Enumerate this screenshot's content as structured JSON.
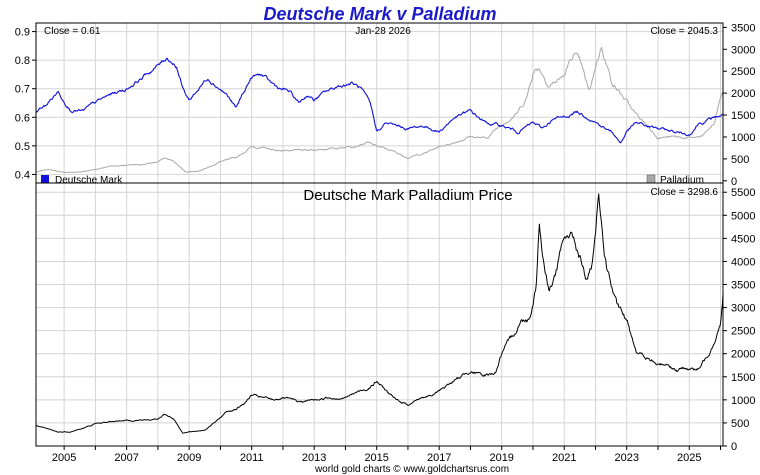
{
  "chart_data": {
    "type": "line",
    "title": "Deutsche Mark v Palladium",
    "footer": "world gold charts © www.goldchartsrus.com",
    "colors": {
      "title": "#1a1acc",
      "dm": "#1010dd",
      "palladium": "#a8a8a8",
      "price": "#000000",
      "grid": "#d4d4d4",
      "frame": "#000000"
    },
    "x_axis": {
      "range": [
        2004.1,
        2026.08
      ],
      "ticks": [
        2005,
        2007,
        2009,
        2011,
        2013,
        2015,
        2017,
        2019,
        2021,
        2023,
        2025
      ],
      "labels": [
        "2005",
        "2007",
        "2009",
        "2011",
        "2013",
        "2015",
        "2017",
        "2019",
        "2021",
        "2023",
        "2025"
      ]
    },
    "top_panel": {
      "close_left": "Close = 0.61",
      "date": "Jan-28  2026",
      "close_right": "Close = 2045.3",
      "left_axis": {
        "range": [
          0.37,
          0.93
        ],
        "ticks": [
          0.4,
          0.5,
          0.6,
          0.7,
          0.8,
          0.9
        ],
        "labels": [
          "0.4",
          "0.5",
          "0.6",
          "0.7",
          "0.8",
          "0.9"
        ]
      },
      "right_axis": {
        "range": [
          -50,
          3600
        ],
        "ticks": [
          0,
          500,
          1000,
          1500,
          2000,
          2500,
          3000,
          3500
        ],
        "labels": [
          "0",
          "500",
          "1000",
          "1500",
          "2000",
          "2500",
          "3000",
          "3500"
        ]
      },
      "legend": {
        "left": "Deutsche Mark",
        "right": "Palladium"
      },
      "series": [
        {
          "name": "Deutsche Mark",
          "axis": "left",
          "x": [
            2004.1,
            2004.4,
            2004.8,
            2005.2,
            2005.6,
            2006.0,
            2006.5,
            2007.0,
            2007.5,
            2008.0,
            2008.3,
            2008.6,
            2008.8,
            2009.0,
            2009.3,
            2009.6,
            2009.9,
            2010.2,
            2010.5,
            2010.8,
            2011.0,
            2011.3,
            2011.6,
            2011.9,
            2012.2,
            2012.5,
            2012.8,
            2013.0,
            2013.4,
            2013.8,
            2014.2,
            2014.5,
            2014.8,
            2015.0,
            2015.3,
            2015.6,
            2016.0,
            2016.5,
            2017.0,
            2017.5,
            2018.0,
            2018.5,
            2019.0,
            2019.5,
            2020.0,
            2020.3,
            2020.6,
            2021.0,
            2021.4,
            2021.8,
            2022.2,
            2022.6,
            2022.8,
            2023.0,
            2023.3,
            2023.6,
            2024.0,
            2024.5,
            2025.0,
            2025.3,
            2025.6,
            2026.08
          ],
          "y": [
            0.62,
            0.64,
            0.69,
            0.63,
            0.62,
            0.65,
            0.68,
            0.7,
            0.74,
            0.78,
            0.81,
            0.78,
            0.7,
            0.66,
            0.7,
            0.74,
            0.71,
            0.68,
            0.63,
            0.7,
            0.74,
            0.75,
            0.72,
            0.7,
            0.69,
            0.65,
            0.68,
            0.66,
            0.69,
            0.71,
            0.72,
            0.7,
            0.64,
            0.55,
            0.58,
            0.57,
            0.56,
            0.57,
            0.55,
            0.6,
            0.62,
            0.58,
            0.57,
            0.55,
            0.58,
            0.56,
            0.59,
            0.6,
            0.62,
            0.6,
            0.57,
            0.54,
            0.51,
            0.55,
            0.58,
            0.57,
            0.56,
            0.55,
            0.54,
            0.58,
            0.59,
            0.61
          ]
        },
        {
          "name": "Palladium",
          "axis": "right",
          "x": [
            2004.1,
            2004.5,
            2005.0,
            2005.5,
            2006.0,
            2006.5,
            2007.0,
            2007.5,
            2008.0,
            2008.2,
            2008.5,
            2008.9,
            2009.3,
            2009.7,
            2010.0,
            2010.5,
            2011.0,
            2011.3,
            2011.8,
            2012.2,
            2012.8,
            2013.2,
            2013.8,
            2014.3,
            2014.7,
            2015.0,
            2015.5,
            2016.0,
            2016.5,
            2017.0,
            2017.5,
            2018.0,
            2018.5,
            2019.0,
            2019.5,
            2019.8,
            2020.0,
            2020.2,
            2020.5,
            2020.8,
            2021.0,
            2021.3,
            2021.5,
            2021.8,
            2022.0,
            2022.2,
            2022.5,
            2022.8,
            2023.0,
            2023.3,
            2023.6,
            2024.0,
            2024.5,
            2025.0,
            2025.4,
            2025.8,
            2026.0,
            2026.08
          ],
          "y": [
            200,
            260,
            190,
            200,
            260,
            340,
            350,
            370,
            430,
            520,
            450,
            200,
            230,
            330,
            440,
            520,
            780,
            760,
            690,
            700,
            680,
            720,
            750,
            810,
            870,
            790,
            680,
            530,
            620,
            780,
            880,
            1020,
            960,
            1300,
            1550,
            1900,
            2500,
            2600,
            2200,
            2300,
            2400,
            2900,
            2700,
            2000,
            2600,
            3100,
            2300,
            2000,
            1800,
            1500,
            1300,
            1000,
            1000,
            970,
            1000,
            1300,
            1900,
            2045.3
          ]
        }
      ]
    },
    "bottom_panel": {
      "title": "Deutsche Mark Palladium Price",
      "close_right": "Close = 3298.6",
      "right_axis": {
        "range": [
          0,
          5700
        ],
        "ticks": [
          0,
          500,
          1000,
          1500,
          2000,
          2500,
          3000,
          3500,
          4000,
          4500,
          5000,
          5500
        ],
        "labels": [
          "0",
          "500",
          "1000",
          "1500",
          "2000",
          "2500",
          "3000",
          "3500",
          "4000",
          "4500",
          "5000",
          "5500"
        ]
      },
      "series": [
        {
          "name": "Deutsche Mark Palladium Price",
          "x": [
            2004.1,
            2004.4,
            2004.8,
            2005.2,
            2005.6,
            2006.0,
            2006.4,
            2006.8,
            2007.2,
            2007.6,
            2008.0,
            2008.2,
            2008.5,
            2008.8,
            2009.0,
            2009.5,
            2009.9,
            2010.2,
            2010.5,
            2010.8,
            2011.0,
            2011.3,
            2011.7,
            2012.0,
            2012.5,
            2013.0,
            2013.5,
            2014.0,
            2014.3,
            2014.7,
            2015.0,
            2015.3,
            2015.6,
            2016.0,
            2016.4,
            2016.8,
            2017.2,
            2017.6,
            2018.0,
            2018.4,
            2018.8,
            2019.0,
            2019.3,
            2019.6,
            2019.9,
            2020.1,
            2020.2,
            2020.3,
            2020.5,
            2020.7,
            2020.9,
            2021.1,
            2021.3,
            2021.5,
            2021.7,
            2021.9,
            2022.0,
            2022.1,
            2022.3,
            2022.5,
            2022.7,
            2023.0,
            2023.3,
            2023.6,
            2024.0,
            2024.3,
            2024.6,
            2025.0,
            2025.3,
            2025.6,
            2025.8,
            2026.0,
            2026.08
          ],
          "y": [
            450,
            380,
            300,
            310,
            380,
            480,
            520,
            550,
            560,
            560,
            580,
            700,
            600,
            280,
            300,
            350,
            550,
            750,
            800,
            950,
            1100,
            1050,
            1000,
            1050,
            950,
            1000,
            1050,
            1050,
            1150,
            1250,
            1400,
            1200,
            1000,
            900,
            1050,
            1100,
            1300,
            1450,
            1650,
            1500,
            1600,
            2000,
            2300,
            2700,
            2800,
            3500,
            4900,
            4200,
            3400,
            3700,
            4200,
            4600,
            4500,
            4100,
            3600,
            3900,
            4500,
            5300,
            4100,
            3500,
            3000,
            2700,
            2100,
            1900,
            1750,
            1800,
            1650,
            1700,
            1650,
            2000,
            2300,
            2700,
            3298.6
          ]
        }
      ]
    }
  }
}
